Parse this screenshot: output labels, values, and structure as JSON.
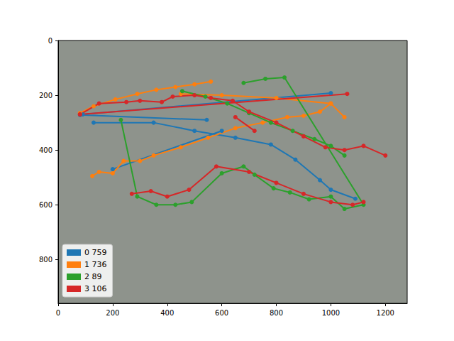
{
  "chart_data": {
    "type": "line",
    "xlim": [
      0,
      1280
    ],
    "ylim": [
      960,
      0
    ],
    "xticks": [
      0,
      200,
      400,
      600,
      800,
      1000,
      1200
    ],
    "yticks": [
      0,
      200,
      400,
      600,
      800
    ],
    "grid": false,
    "legend": "lower left",
    "marker": "circle",
    "line_style": "solid",
    "series": [
      {
        "name": "0 759",
        "color": "#1f77b4",
        "values": [
          [
            1090,
            578
          ],
          [
            1000,
            545
          ],
          [
            960,
            510
          ],
          [
            870,
            435
          ],
          [
            780,
            380
          ],
          [
            650,
            355
          ],
          [
            500,
            330
          ],
          [
            350,
            300
          ],
          [
            130,
            300
          ],
          null,
          [
            80,
            272
          ],
          [
            545,
            290
          ],
          null,
          [
            90,
            270
          ],
          [
            1000,
            192
          ],
          null,
          [
            200,
            470
          ],
          [
            600,
            330
          ]
        ]
      },
      {
        "name": "1 736",
        "color": "#ff7f0e",
        "values": [
          [
            80,
            265
          ],
          [
            130,
            240
          ],
          [
            210,
            215
          ],
          [
            290,
            195
          ],
          [
            360,
            180
          ],
          [
            430,
            170
          ],
          [
            500,
            160
          ],
          [
            560,
            150
          ],
          null,
          [
            125,
            495
          ],
          [
            150,
            480
          ],
          [
            200,
            485
          ],
          [
            240,
            440
          ],
          [
            300,
            440
          ],
          [
            350,
            420
          ],
          [
            450,
            390
          ],
          [
            550,
            355
          ],
          [
            650,
            320
          ],
          [
            750,
            300
          ],
          [
            840,
            280
          ],
          [
            900,
            275
          ],
          [
            960,
            260
          ],
          [
            1000,
            230
          ],
          [
            1050,
            280
          ],
          null,
          [
            450,
            195
          ],
          [
            600,
            200
          ],
          [
            800,
            210
          ],
          [
            1000,
            230
          ]
        ]
      },
      {
        "name": "2 89",
        "color": "#2ca02c",
        "values": [
          [
            680,
            155
          ],
          [
            760,
            140
          ],
          [
            830,
            135
          ],
          [
            1120,
            600
          ],
          [
            1050,
            615
          ],
          [
            1000,
            570
          ],
          [
            920,
            580
          ],
          [
            850,
            555
          ],
          [
            790,
            540
          ],
          [
            720,
            490
          ],
          [
            680,
            460
          ],
          [
            600,
            485
          ],
          [
            490,
            590
          ],
          [
            430,
            600
          ],
          [
            360,
            600
          ],
          [
            290,
            570
          ],
          [
            230,
            290
          ],
          null,
          [
            455,
            185
          ],
          [
            540,
            205
          ],
          [
            620,
            230
          ],
          [
            700,
            265
          ],
          [
            780,
            300
          ],
          [
            860,
            330
          ],
          [
            940,
            360
          ],
          [
            1000,
            385
          ],
          [
            1050,
            420
          ]
        ]
      },
      {
        "name": "3 106",
        "color": "#d62728",
        "values": [
          [
            80,
            270
          ],
          [
            150,
            230
          ],
          [
            250,
            225
          ],
          [
            300,
            220
          ],
          [
            380,
            225
          ],
          [
            420,
            205
          ],
          [
            500,
            200
          ],
          [
            560,
            210
          ],
          [
            640,
            220
          ],
          [
            700,
            260
          ],
          [
            800,
            300
          ],
          [
            900,
            350
          ],
          [
            980,
            390
          ],
          [
            1050,
            400
          ],
          [
            1120,
            385
          ],
          [
            1200,
            420
          ],
          null,
          [
            270,
            560
          ],
          [
            340,
            550
          ],
          [
            400,
            570
          ],
          [
            480,
            545
          ],
          [
            580,
            460
          ],
          [
            700,
            480
          ],
          [
            800,
            520
          ],
          [
            900,
            560
          ],
          [
            1000,
            590
          ],
          [
            1080,
            600
          ],
          [
            1120,
            590
          ],
          null,
          [
            80,
            270
          ],
          [
            1060,
            195
          ],
          null,
          [
            650,
            280
          ],
          [
            720,
            330
          ]
        ]
      }
    ]
  }
}
